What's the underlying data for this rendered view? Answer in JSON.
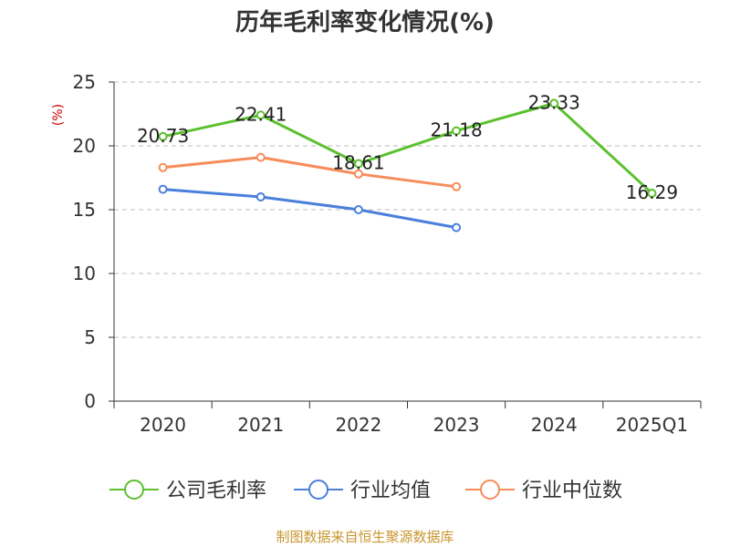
{
  "colors": {
    "gross_margin": "#5bc12f",
    "industry_avg": "#4a7fdc",
    "industry_median": "#f78c5a",
    "unit_label": "#cc0000",
    "source": "#c8962e",
    "grid": "#bbbbbb",
    "axis": "#333333"
  },
  "chart_data": {
    "type": "line",
    "title": "历年毛利率变化情况(%)",
    "ylabel": "(%)",
    "categories": [
      "2020",
      "2021",
      "2022",
      "2023",
      "2024",
      "2025Q1"
    ],
    "ylim": [
      0,
      25
    ],
    "yticks": [
      0,
      5,
      10,
      15,
      20,
      25
    ],
    "grid": true,
    "legend_position": "bottom",
    "series": [
      {
        "name": "公司毛利率",
        "color_key": "gross_margin",
        "values": [
          20.73,
          22.41,
          18.61,
          21.18,
          23.33,
          16.29
        ],
        "labels": [
          "20.73",
          "22.41",
          "18.61",
          "21.18",
          "23.33",
          "16.29"
        ]
      },
      {
        "name": "行业均值",
        "color_key": "industry_avg",
        "values": [
          16.6,
          16.0,
          15.0,
          13.6,
          null,
          null
        ]
      },
      {
        "name": "行业中位数",
        "color_key": "industry_median",
        "values": [
          18.3,
          19.1,
          17.8,
          16.8,
          null,
          null
        ]
      }
    ]
  },
  "source": "制图数据来自恒生聚源数据库"
}
